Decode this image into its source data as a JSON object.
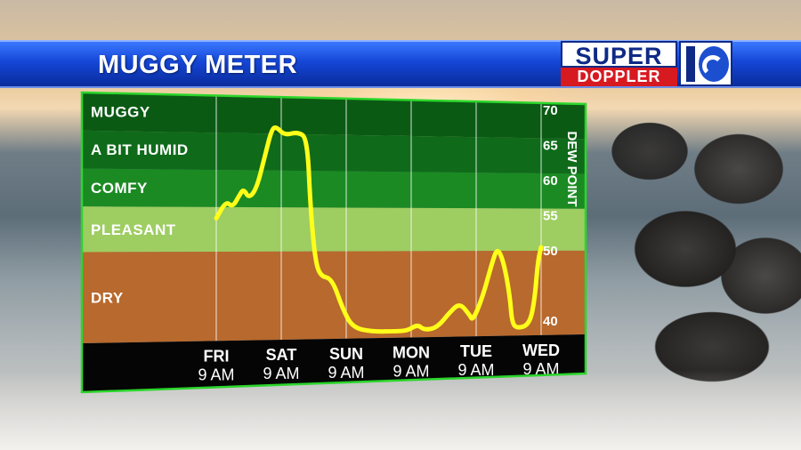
{
  "title": "MUGGY METER",
  "logo": {
    "top": "SUPER",
    "bottom": "DOPPLER"
  },
  "chart_data": {
    "type": "line",
    "title": "MUGGY METER",
    "ylabel": "DEW POINT",
    "ylim": [
      38,
      71
    ],
    "yticks": [
      70,
      65,
      60,
      55,
      50,
      40
    ],
    "bands": [
      {
        "label": "MUGGY",
        "from": 66,
        "to": 71,
        "color": "#0b5a14"
      },
      {
        "label": "A BIT HUMID",
        "from": 61,
        "to": 66,
        "color": "#0f6b1a"
      },
      {
        "label": "COMFY",
        "from": 56,
        "to": 61,
        "color": "#1b8a23"
      },
      {
        "label": "PLEASANT",
        "from": 50,
        "to": 56,
        "color": "#9ecd62"
      },
      {
        "label": "DRY",
        "from": 38,
        "to": 50,
        "color": "#b8692d"
      }
    ],
    "categories": [
      {
        "day": "FRI",
        "time": "9 AM"
      },
      {
        "day": "SAT",
        "time": "9 AM"
      },
      {
        "day": "SUN",
        "time": "9 AM"
      },
      {
        "day": "MON",
        "time": "9 AM"
      },
      {
        "day": "TUE",
        "time": "9 AM"
      },
      {
        "day": "WED",
        "time": "9 AM"
      }
    ],
    "series": [
      {
        "color": "#ffff1a",
        "points": [
          [
            0.0,
            54.5
          ],
          [
            0.15,
            56.8
          ],
          [
            0.25,
            56.0
          ],
          [
            0.35,
            57.5
          ],
          [
            0.42,
            58.5
          ],
          [
            0.5,
            57.2
          ],
          [
            0.62,
            58.5
          ],
          [
            0.75,
            63.0
          ],
          [
            0.85,
            66.5
          ],
          [
            0.92,
            67.0
          ],
          [
            1.05,
            65.8
          ],
          [
            1.25,
            66.3
          ],
          [
            1.4,
            65.5
          ],
          [
            1.45,
            56.0
          ],
          [
            1.52,
            49.0
          ],
          [
            1.6,
            46.6
          ],
          [
            1.78,
            46.3
          ],
          [
            1.95,
            42.0
          ],
          [
            2.1,
            39.5
          ],
          [
            2.4,
            38.9
          ],
          [
            2.8,
            38.9
          ],
          [
            2.95,
            39.0
          ],
          [
            3.1,
            39.8
          ],
          [
            3.2,
            39.0
          ],
          [
            3.4,
            39.3
          ],
          [
            3.6,
            41.5
          ],
          [
            3.75,
            42.7
          ],
          [
            3.9,
            41.0
          ],
          [
            3.95,
            40.2
          ],
          [
            4.1,
            43.5
          ],
          [
            4.25,
            48.5
          ],
          [
            4.33,
            50.5
          ],
          [
            4.43,
            48.2
          ],
          [
            4.52,
            43.5
          ],
          [
            4.55,
            40.0
          ],
          [
            4.62,
            39.0
          ],
          [
            4.82,
            39.5
          ],
          [
            4.9,
            43.0
          ],
          [
            4.95,
            48.5
          ],
          [
            5.0,
            50.5
          ]
        ]
      }
    ]
  }
}
